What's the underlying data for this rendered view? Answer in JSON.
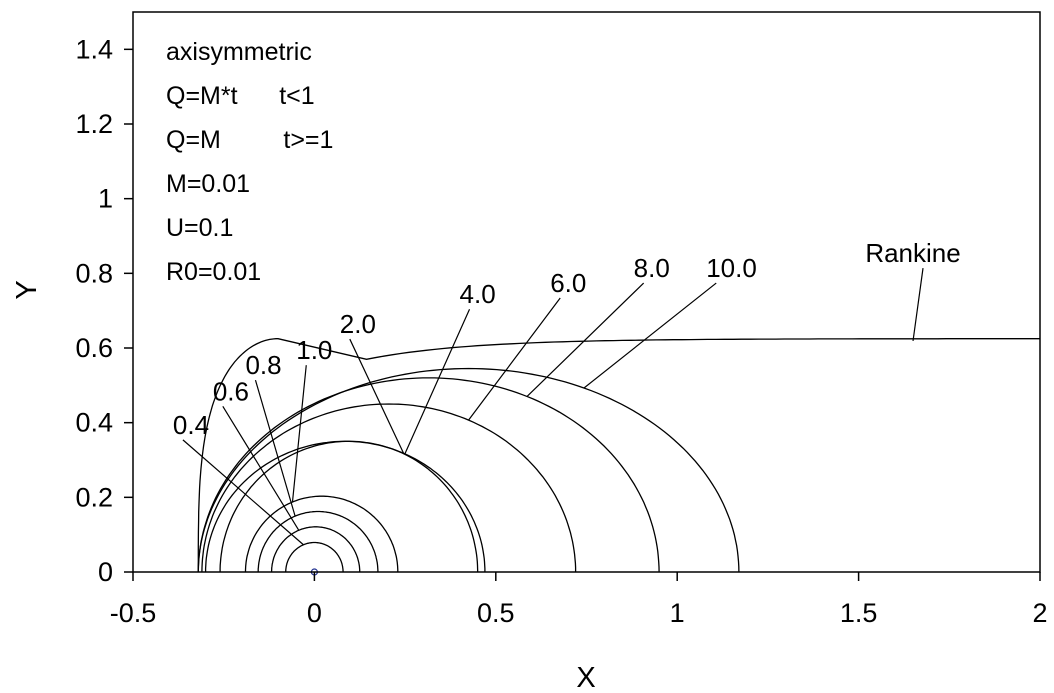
{
  "chart_data": {
    "type": "line",
    "title": "",
    "xlabel": "X",
    "ylabel": "Y",
    "xlim": [
      -0.5,
      2
    ],
    "ylim": [
      0,
      1.5
    ],
    "xticks": [
      -0.5,
      0,
      0.5,
      1,
      1.5,
      2
    ],
    "xtick_labels": [
      "-0.5",
      "0",
      "0.5",
      "1",
      "1.5",
      "2"
    ],
    "yticks": [
      0,
      0.2,
      0.4,
      0.6,
      0.8,
      1,
      1.2,
      1.4
    ],
    "ytick_labels": [
      "0",
      "0.2",
      "0.4",
      "0.6",
      "0.8",
      "1",
      "1.2",
      "1.4"
    ],
    "grid": false,
    "annotation_lines": [
      "axisymmetric",
      "Q=M*t      t<1",
      "Q=M         t>=1",
      "M=0.01",
      "U=0.1",
      "R0=0.01"
    ],
    "series": [
      {
        "name": "0.4",
        "x0": -0.079,
        "x1": 0.079,
        "height": 0.079,
        "ax": 0.1,
        "ay": 0.05,
        "label_x": -0.39,
        "label_y": 0.37
      },
      {
        "name": "0.6",
        "x0": -0.118,
        "x1": 0.125,
        "height": 0.121,
        "ax": 0.1,
        "ay": 0.05,
        "label_x": -0.28,
        "label_y": 0.46
      },
      {
        "name": "0.8",
        "x0": -0.155,
        "x1": 0.175,
        "height": 0.162,
        "ax": 0.1,
        "ay": 0.05,
        "label_x": -0.19,
        "label_y": 0.53
      },
      {
        "name": "1.0",
        "x0": -0.19,
        "x1": 0.23,
        "height": 0.203,
        "ax": 0.1,
        "ay": 0.05,
        "label_x": -0.05,
        "label_y": 0.57
      },
      {
        "name": "2.0",
        "x0": -0.26,
        "x1": 0.45,
        "height": 0.35,
        "ax": 0.1,
        "ay": 0.05,
        "label_x": 0.07,
        "label_y": 0.64
      },
      {
        "name": "4.0",
        "x0": -0.3,
        "x1": 0.47,
        "height": 0.35,
        "ax": 0.3,
        "ay": 0.05,
        "label_x": 0.4,
        "label_y": 0.72
      },
      {
        "name": "6.0",
        "x0": -0.31,
        "x1": 0.72,
        "height": 0.45,
        "ax": 0.3,
        "ay": 0.05,
        "label_x": 0.65,
        "label_y": 0.75
      },
      {
        "name": "8.0",
        "x0": -0.32,
        "x1": 0.95,
        "height": 0.52,
        "ax": 0.3,
        "ay": 0.05,
        "label_x": 0.88,
        "label_y": 0.79
      },
      {
        "name": "10.0",
        "x0": -0.32,
        "x1": 1.17,
        "height": 0.545,
        "ax": 0.3,
        "ay": 0.05,
        "label_x": 1.08,
        "label_y": 0.79
      },
      {
        "name": "Rankine",
        "x0": -0.32,
        "x1": 2.0,
        "height": 0.625,
        "ax": 0.3,
        "ay": 0.05,
        "label_x": 1.65,
        "label_y": 0.83
      }
    ]
  }
}
